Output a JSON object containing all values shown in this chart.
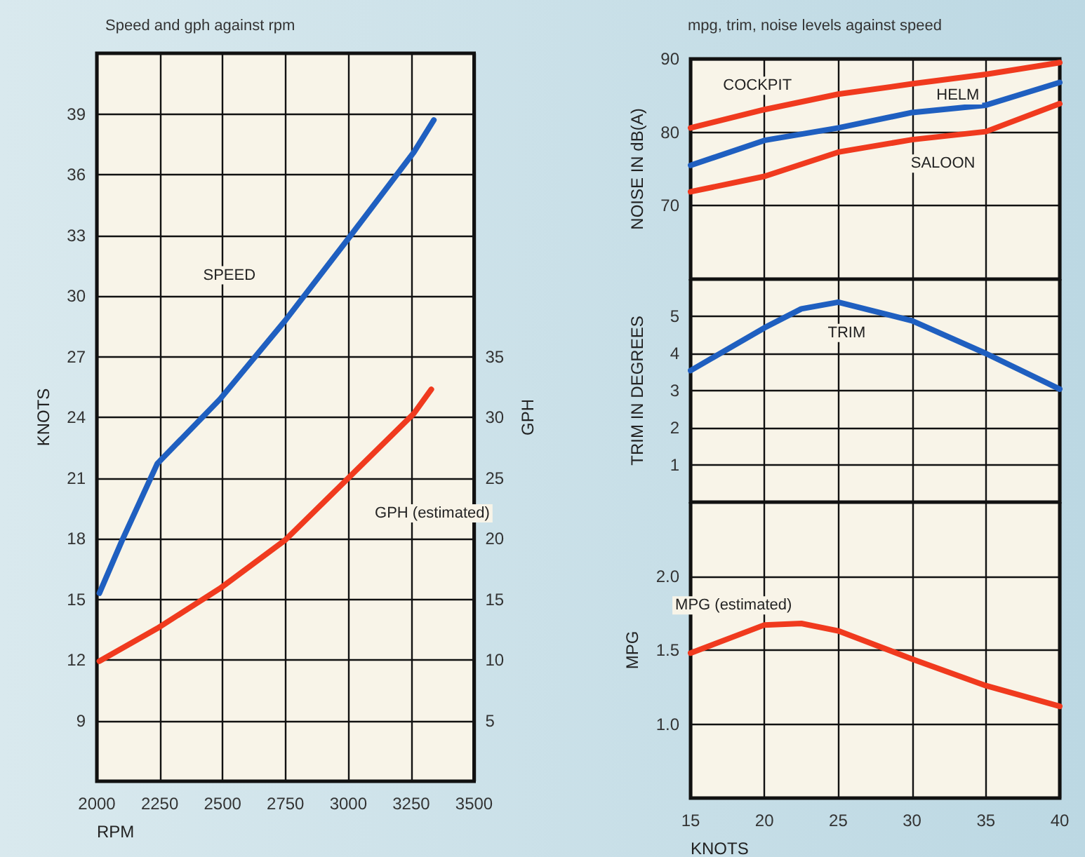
{
  "chart_data": [
    {
      "type": "line",
      "title": "Speed and gph against rpm",
      "xlabel": "RPM",
      "ylabel": "KNOTS",
      "y2label": "GPH",
      "xlim": [
        2000,
        3500
      ],
      "xticks": [
        2000,
        2250,
        2500,
        2750,
        3000,
        3250,
        3500
      ],
      "ylim": [
        6,
        42
      ],
      "yticks": [
        9,
        12,
        15,
        18,
        21,
        24,
        27,
        30,
        33,
        36,
        39
      ],
      "y2lim": [
        0,
        60
      ],
      "y2ticks": [
        5,
        10,
        15,
        20,
        25,
        30,
        35
      ],
      "grid": true,
      "marker": "none",
      "series": [
        {
          "name": "SPEED",
          "color": "#1f5fc0",
          "x": [
            2010,
            2100,
            2240,
            2490,
            2750,
            3010,
            3260,
            3340
          ],
          "values": [
            15.3,
            17.9,
            21.7,
            24.9,
            28.8,
            33.0,
            37.1,
            38.7
          ]
        },
        {
          "name": "GPH (estimated)",
          "color": "#f03a1e",
          "axis": "y2",
          "x": [
            2010,
            2240,
            2490,
            2750,
            3010,
            3260,
            3330
          ],
          "values": [
            9.9,
            12.6,
            15.9,
            19.9,
            25.2,
            30.3,
            32.3
          ]
        }
      ]
    },
    {
      "type": "line",
      "title": "mpg, trim, noise levels against speed",
      "ylabel": "NOISE IN dB(A)",
      "xlim": [
        15,
        40
      ],
      "xticks": [
        15,
        20,
        25,
        30,
        35,
        40
      ],
      "ylim": [
        60,
        90
      ],
      "yticks": [
        70,
        80,
        90
      ],
      "tick_labels": "y",
      "grid": true,
      "marker": "none",
      "series": [
        {
          "name": "COCKPIT",
          "color": "#f03a1e",
          "x": [
            15,
            20,
            25,
            30,
            35,
            40
          ],
          "values": [
            80.6,
            83.1,
            85.2,
            86.6,
            87.9,
            89.5
          ]
        },
        {
          "name": "HELM",
          "color": "#1f5fc0",
          "x": [
            15,
            20,
            25,
            30,
            35,
            40
          ],
          "values": [
            75.5,
            78.9,
            80.6,
            82.7,
            83.7,
            86.8
          ]
        },
        {
          "name": "SALOON",
          "color": "#f03a1e",
          "x": [
            15,
            20,
            25,
            30,
            35,
            40
          ],
          "values": [
            71.9,
            74.0,
            77.3,
            79.0,
            80.1,
            83.9
          ]
        }
      ]
    },
    {
      "type": "line",
      "ylabel": "TRIM IN DEGREES",
      "xlim": [
        15,
        40
      ],
      "xticks": [
        15,
        20,
        25,
        30,
        35,
        40
      ],
      "ylim": [
        0,
        6
      ],
      "yticks": [
        1,
        2,
        3,
        4,
        5
      ],
      "tick_labels": "y",
      "grid": true,
      "marker": "none",
      "series": [
        {
          "name": "TRIM",
          "color": "#1f5fc0",
          "x": [
            15,
            20,
            22.5,
            25,
            30,
            35,
            40
          ],
          "values": [
            3.54,
            4.69,
            5.2,
            5.38,
            4.88,
            4.0,
            3.04
          ]
        }
      ]
    },
    {
      "type": "line",
      "xlabel": "KNOTS",
      "ylabel": "MPG",
      "xlim": [
        15,
        40
      ],
      "xticks": [
        15,
        20,
        25,
        30,
        35,
        40
      ],
      "ylim": [
        0.5,
        2.5
      ],
      "yticks": [
        {
          "value": 1,
          "label": "1.0"
        },
        1.5,
        {
          "value": 2,
          "label": "2.0"
        }
      ],
      "grid": true,
      "marker": "none",
      "series": [
        {
          "name": "MPG (estimated)",
          "color": "#f03a1e",
          "x": [
            15,
            20,
            22.5,
            25,
            30,
            35,
            40
          ],
          "values": [
            1.48,
            1.67,
            1.68,
            1.63,
            1.44,
            1.26,
            1.12
          ]
        }
      ]
    }
  ]
}
